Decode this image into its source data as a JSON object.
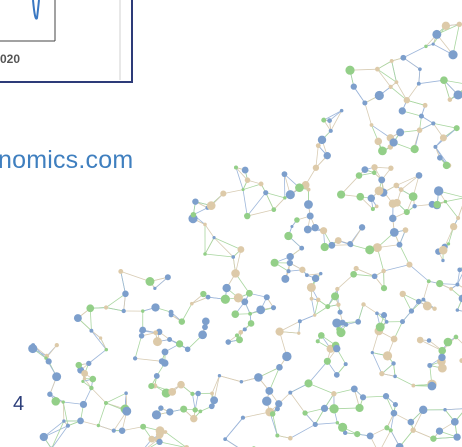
{
  "chart_panel": {
    "axis_label": "020"
  },
  "website": "nomics.com",
  "page_number": "4"
}
